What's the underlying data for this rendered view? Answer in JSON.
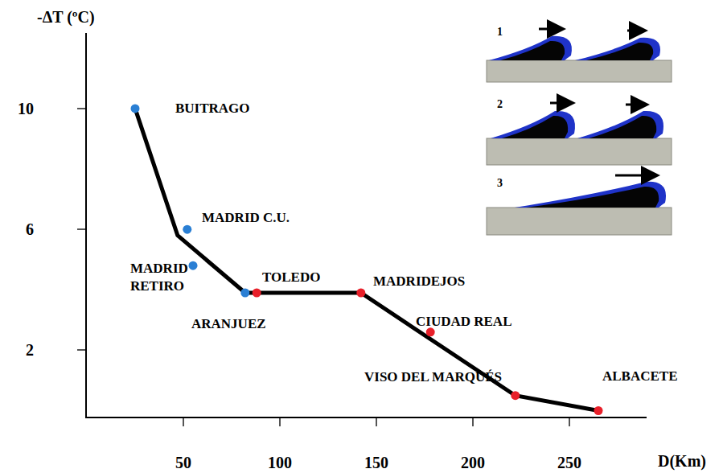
{
  "chart_data": {
    "type": "scatter",
    "x_label": "D(Km)",
    "y_label": "-ΔT (ºC)",
    "xlim": [
      0,
      290
    ],
    "ylim": [
      -0.2,
      12.5
    ],
    "xticks": [
      50,
      100,
      150,
      200,
      250
    ],
    "yticks": [
      2,
      6,
      10
    ],
    "grid": false,
    "series": [
      {
        "type": "line",
        "color": "#000000",
        "x": [
          25,
          47,
          82,
          142,
          222,
          265
        ],
        "values": [
          10,
          5.8,
          3.9,
          3.9,
          0.5,
          0
        ]
      },
      {
        "type": "scatter",
        "color": "#2a7fd4",
        "x": [
          25,
          52,
          55,
          82
        ],
        "values": [
          10,
          6,
          4.8,
          3.9
        ],
        "point_labels": [
          "BUITRAGO",
          "MADRID C.U.",
          "MADRID RETIRO",
          "ARANJUEZ"
        ]
      },
      {
        "type": "scatter",
        "color": "#e8202a",
        "x": [
          88,
          142,
          178,
          222,
          265
        ],
        "values": [
          3.9,
          3.9,
          2.6,
          0.5,
          0
        ],
        "point_labels": [
          "TOLEDO",
          "MADRIDEJOS",
          "CIUDAD REAL",
          "VISO DEL MARQUÉS",
          "ALBACETE"
        ]
      }
    ]
  },
  "inset": {
    "panels": [
      "1",
      "2",
      "3"
    ]
  }
}
